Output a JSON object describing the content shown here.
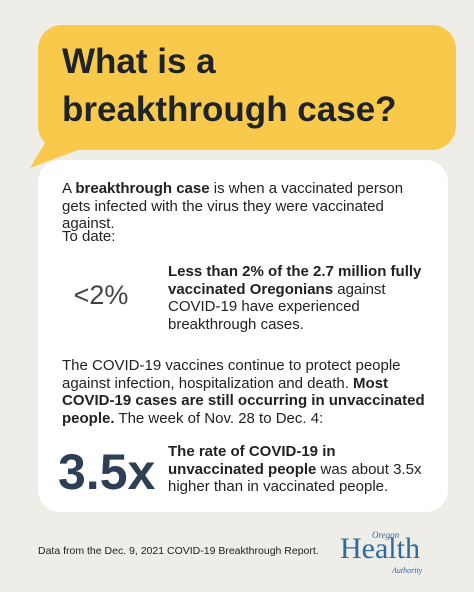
{
  "title": "What is a breakthrough case?",
  "definition": {
    "before": "A",
    "bold": "breakthrough case",
    "after": "is when a vaccinated person gets infected with the virus they were vaccinated against."
  },
  "to_date": "To date:",
  "stat1": {
    "figure": "<2%",
    "bold": "Less than 2% of the 2.7 million fully vaccinated Oregonians",
    "regular": "against COVID-19 have experienced breakthrough cases."
  },
  "paragraph": {
    "regular": "The COVID-19 vaccines continue to protect people against infection, hospitalization and death.",
    "bold": "Most COVID-19 cases are still occurring in unvaccinated people.",
    "after": "The week of Nov. 28 to Dec. 4:"
  },
  "stat2": {
    "figure": "3.5x",
    "bold": "The rate of COVID-19 in unvaccinated people",
    "regular": "was about 3.5x higher than in vaccinated people."
  },
  "footer": "Data from the Dec. 9, 2021 COVID-19 Breakthrough Report.",
  "logo": {
    "top": "Oregon",
    "main": "Health",
    "bottom": "Authority"
  }
}
